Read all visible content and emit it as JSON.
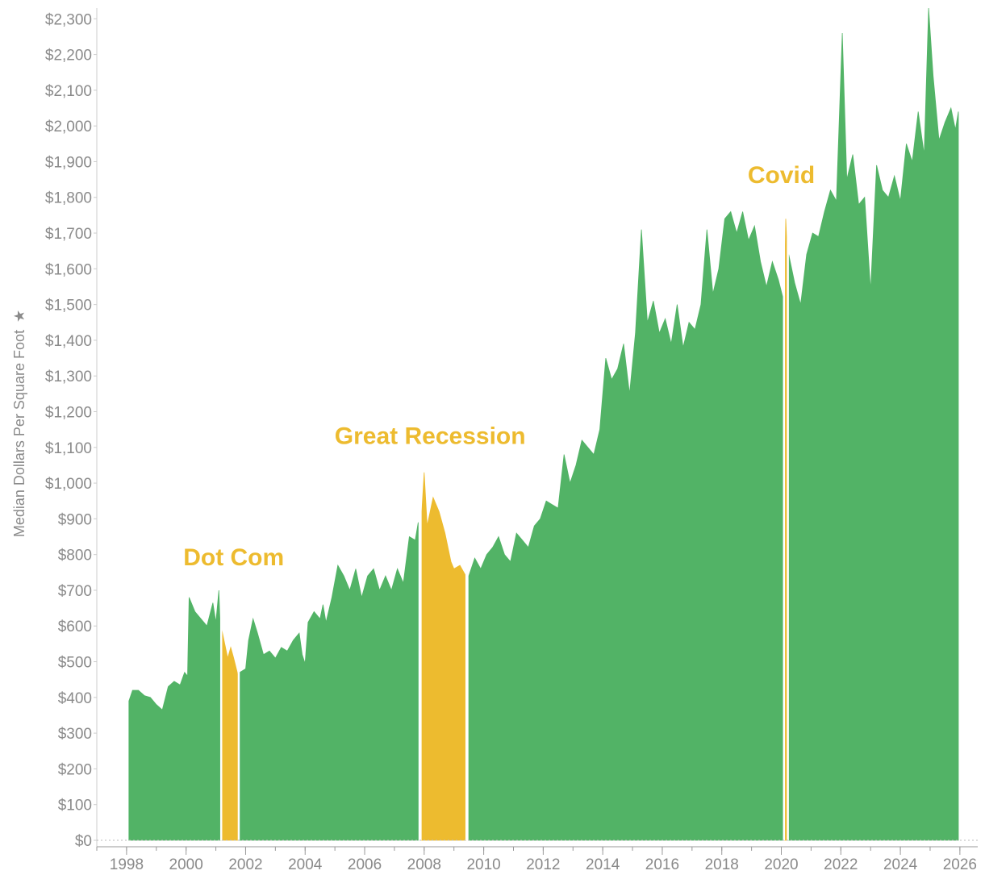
{
  "chart_data": {
    "type": "area",
    "ylabel": "Median Dollars Per Square Foot",
    "ylabel_marker": "★",
    "ylim": [
      0,
      2330
    ],
    "xlim": [
      1997.0,
      2026.6
    ],
    "y_ticks": [
      0,
      100,
      200,
      300,
      400,
      500,
      600,
      700,
      800,
      900,
      1000,
      1100,
      1200,
      1300,
      1400,
      1500,
      1600,
      1700,
      1800,
      1900,
      2000,
      2100,
      2200,
      2300
    ],
    "y_tick_labels": [
      "$0",
      "$100",
      "$200",
      "$300",
      "$400",
      "$500",
      "$600",
      "$700",
      "$800",
      "$900",
      "$1,000",
      "$1,100",
      "$1,200",
      "$1,300",
      "$1,400",
      "$1,500",
      "$1,600",
      "$1,700",
      "$1,800",
      "$1,900",
      "$2,000",
      "$2,100",
      "$2,200",
      "$2,300"
    ],
    "x_ticks": [
      1998,
      2000,
      2002,
      2004,
      2006,
      2008,
      2010,
      2012,
      2014,
      2016,
      2018,
      2020,
      2022,
      2024,
      2026
    ],
    "x_tick_labels": [
      "1998",
      "2000",
      "2002",
      "2004",
      "2006",
      "2008",
      "2010",
      "2012",
      "2014",
      "2016",
      "2018",
      "2020",
      "2022",
      "2024",
      "2026"
    ],
    "colors": {
      "normal": "#52B366",
      "recession": "#EDBB2F",
      "divider": "#ffffff",
      "axis": "#cccccc",
      "tick_text": "#8a8a8a"
    },
    "series": [
      {
        "name": "Median Dollars Per Square Foot",
        "points": [
          [
            1998.08,
            390
          ],
          [
            1998.2,
            420
          ],
          [
            1998.4,
            420
          ],
          [
            1998.6,
            405
          ],
          [
            1998.8,
            400
          ],
          [
            1999.0,
            380
          ],
          [
            1999.2,
            365
          ],
          [
            1999.4,
            430
          ],
          [
            1999.6,
            445
          ],
          [
            1999.8,
            435
          ],
          [
            1999.95,
            470
          ],
          [
            2000.05,
            460
          ],
          [
            2000.1,
            680
          ],
          [
            2000.3,
            640
          ],
          [
            2000.5,
            620
          ],
          [
            2000.7,
            600
          ],
          [
            2000.9,
            665
          ],
          [
            2001.0,
            610
          ],
          [
            2001.1,
            700
          ],
          [
            2001.15,
            590
          ],
          [
            2001.2,
            590
          ],
          [
            2001.4,
            510
          ],
          [
            2001.5,
            540
          ],
          [
            2001.6,
            510
          ],
          [
            2001.75,
            460
          ],
          [
            2001.8,
            470
          ],
          [
            2002.0,
            480
          ],
          [
            2002.1,
            560
          ],
          [
            2002.25,
            620
          ],
          [
            2002.4,
            580
          ],
          [
            2002.6,
            520
          ],
          [
            2002.8,
            530
          ],
          [
            2003.0,
            510
          ],
          [
            2003.2,
            540
          ],
          [
            2003.4,
            530
          ],
          [
            2003.6,
            560
          ],
          [
            2003.8,
            580
          ],
          [
            2003.9,
            520
          ],
          [
            2004.0,
            495
          ],
          [
            2004.1,
            610
          ],
          [
            2004.3,
            640
          ],
          [
            2004.5,
            620
          ],
          [
            2004.6,
            660
          ],
          [
            2004.7,
            610
          ],
          [
            2004.9,
            680
          ],
          [
            2005.1,
            770
          ],
          [
            2005.3,
            740
          ],
          [
            2005.5,
            700
          ],
          [
            2005.7,
            760
          ],
          [
            2005.9,
            680
          ],
          [
            2006.1,
            740
          ],
          [
            2006.3,
            760
          ],
          [
            2006.5,
            700
          ],
          [
            2006.7,
            740
          ],
          [
            2006.9,
            700
          ],
          [
            2007.1,
            760
          ],
          [
            2007.3,
            720
          ],
          [
            2007.5,
            850
          ],
          [
            2007.7,
            840
          ],
          [
            2007.8,
            890
          ],
          [
            2007.9,
            890
          ],
          [
            2008.0,
            1030
          ],
          [
            2008.1,
            880
          ],
          [
            2008.3,
            960
          ],
          [
            2008.5,
            920
          ],
          [
            2008.7,
            860
          ],
          [
            2008.9,
            780
          ],
          [
            2009.0,
            760
          ],
          [
            2009.2,
            770
          ],
          [
            2009.4,
            740
          ],
          [
            2009.5,
            740
          ],
          [
            2009.7,
            790
          ],
          [
            2009.9,
            760
          ],
          [
            2010.1,
            800
          ],
          [
            2010.3,
            820
          ],
          [
            2010.5,
            850
          ],
          [
            2010.7,
            800
          ],
          [
            2010.9,
            780
          ],
          [
            2011.1,
            860
          ],
          [
            2011.3,
            840
          ],
          [
            2011.5,
            820
          ],
          [
            2011.7,
            880
          ],
          [
            2011.9,
            900
          ],
          [
            2012.1,
            950
          ],
          [
            2012.3,
            940
          ],
          [
            2012.5,
            930
          ],
          [
            2012.7,
            1080
          ],
          [
            2012.9,
            1000
          ],
          [
            2013.1,
            1050
          ],
          [
            2013.3,
            1120
          ],
          [
            2013.5,
            1100
          ],
          [
            2013.7,
            1080
          ],
          [
            2013.9,
            1150
          ],
          [
            2014.1,
            1350
          ],
          [
            2014.3,
            1290
          ],
          [
            2014.5,
            1320
          ],
          [
            2014.7,
            1390
          ],
          [
            2014.9,
            1250
          ],
          [
            2015.1,
            1420
          ],
          [
            2015.3,
            1710
          ],
          [
            2015.5,
            1450
          ],
          [
            2015.7,
            1510
          ],
          [
            2015.9,
            1420
          ],
          [
            2016.1,
            1460
          ],
          [
            2016.3,
            1390
          ],
          [
            2016.5,
            1500
          ],
          [
            2016.7,
            1380
          ],
          [
            2016.9,
            1450
          ],
          [
            2017.1,
            1430
          ],
          [
            2017.3,
            1500
          ],
          [
            2017.5,
            1710
          ],
          [
            2017.7,
            1530
          ],
          [
            2017.9,
            1600
          ],
          [
            2018.1,
            1740
          ],
          [
            2018.3,
            1760
          ],
          [
            2018.5,
            1700
          ],
          [
            2018.7,
            1760
          ],
          [
            2018.9,
            1680
          ],
          [
            2019.1,
            1720
          ],
          [
            2019.3,
            1620
          ],
          [
            2019.5,
            1550
          ],
          [
            2019.7,
            1620
          ],
          [
            2019.9,
            1570
          ],
          [
            2020.05,
            1520
          ],
          [
            2020.1,
            1520
          ],
          [
            2020.15,
            1740
          ],
          [
            2020.2,
            1650
          ],
          [
            2020.25,
            1640
          ],
          [
            2020.45,
            1560
          ],
          [
            2020.65,
            1500
          ],
          [
            2020.85,
            1640
          ],
          [
            2021.05,
            1700
          ],
          [
            2021.25,
            1690
          ],
          [
            2021.45,
            1760
          ],
          [
            2021.65,
            1820
          ],
          [
            2021.85,
            1790
          ],
          [
            2022.05,
            2260
          ],
          [
            2022.2,
            1850
          ],
          [
            2022.4,
            1920
          ],
          [
            2022.6,
            1780
          ],
          [
            2022.8,
            1800
          ],
          [
            2023.0,
            1540
          ],
          [
            2023.2,
            1890
          ],
          [
            2023.4,
            1820
          ],
          [
            2023.6,
            1800
          ],
          [
            2023.8,
            1860
          ],
          [
            2024.0,
            1790
          ],
          [
            2024.2,
            1950
          ],
          [
            2024.4,
            1900
          ],
          [
            2024.6,
            2040
          ],
          [
            2024.8,
            1920
          ],
          [
            2024.95,
            2330
          ],
          [
            2025.1,
            2140
          ],
          [
            2025.3,
            1960
          ],
          [
            2025.5,
            2010
          ],
          [
            2025.7,
            2050
          ],
          [
            2025.85,
            1990
          ],
          [
            2025.95,
            2040
          ]
        ]
      }
    ],
    "highlight_periods": [
      {
        "name": "Dot Com",
        "start": 2001.18,
        "end": 2001.77
      },
      {
        "name": "Great Recession",
        "start": 2007.88,
        "end": 2009.42
      },
      {
        "name": "Covid",
        "start": 2020.09,
        "end": 2020.22
      }
    ],
    "annotations": [
      {
        "text": "Dot Com",
        "x": 2001.6,
        "y": 770
      },
      {
        "text": "Great Recession",
        "x": 2008.2,
        "y": 1110
      },
      {
        "text": "Covid",
        "x": 2020.0,
        "y": 1840
      }
    ]
  }
}
